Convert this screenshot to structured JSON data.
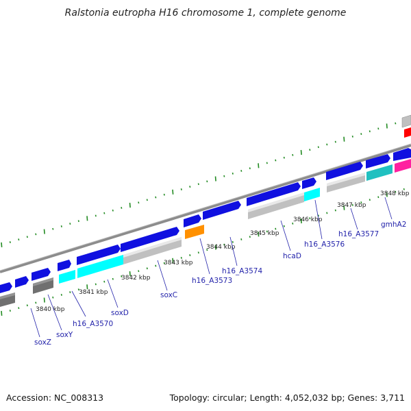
{
  "title": "Ralstonia eutropha H16 chromosome 1, complete genome",
  "footer": {
    "accession": "Accession: NC_008313",
    "topology": "Topology: circular; Length: 4,052,032 bp; Genes: 3,711"
  },
  "kbp_labels": [
    {
      "id": "kbp-3840",
      "text": "3840 kbp"
    },
    {
      "id": "kbp-3841",
      "text": "3841 kbp"
    },
    {
      "id": "kbp-3842",
      "text": "3842 kbp"
    },
    {
      "id": "kbp-3843",
      "text": "3843 kbp"
    },
    {
      "id": "kbp-3844",
      "text": "3844 kbp"
    },
    {
      "id": "kbp-3845",
      "text": "3845 kbp"
    },
    {
      "id": "kbp-3846",
      "text": "3846 kbp"
    },
    {
      "id": "kbp-3847",
      "text": "3847 kbp"
    },
    {
      "id": "kbp-3848",
      "text": "3848 kbp"
    }
  ],
  "gene_labels": [
    {
      "id": "soxZ",
      "text": "soxZ"
    },
    {
      "id": "soxY",
      "text": "soxY"
    },
    {
      "id": "h16_A3570",
      "text": "h16_A3570"
    },
    {
      "id": "soxD",
      "text": "soxD"
    },
    {
      "id": "soxC",
      "text": "soxC"
    },
    {
      "id": "h16_A3573",
      "text": "h16_A3573"
    },
    {
      "id": "h16_A3574",
      "text": "h16_A3574"
    },
    {
      "id": "hcaD",
      "text": "hcaD"
    },
    {
      "id": "h16_A3576",
      "text": "h16_A3576"
    },
    {
      "id": "h16_A3577",
      "text": "h16_A3577"
    },
    {
      "id": "gmhA2",
      "text": "gmhA2"
    }
  ],
  "colors": {
    "backbone": "#8c8c8c",
    "cds_blue": "#1010e0",
    "gene_gray": "#c0c0c0",
    "gene_darkgray": "#707070",
    "cyan": "#00ffff",
    "teal": "#20c0c0",
    "orange": "#ff9000",
    "magenta": "#ff20a0",
    "red": "#ff0000",
    "tick_green": "#228b22",
    "label_line": "#2222aa"
  }
}
